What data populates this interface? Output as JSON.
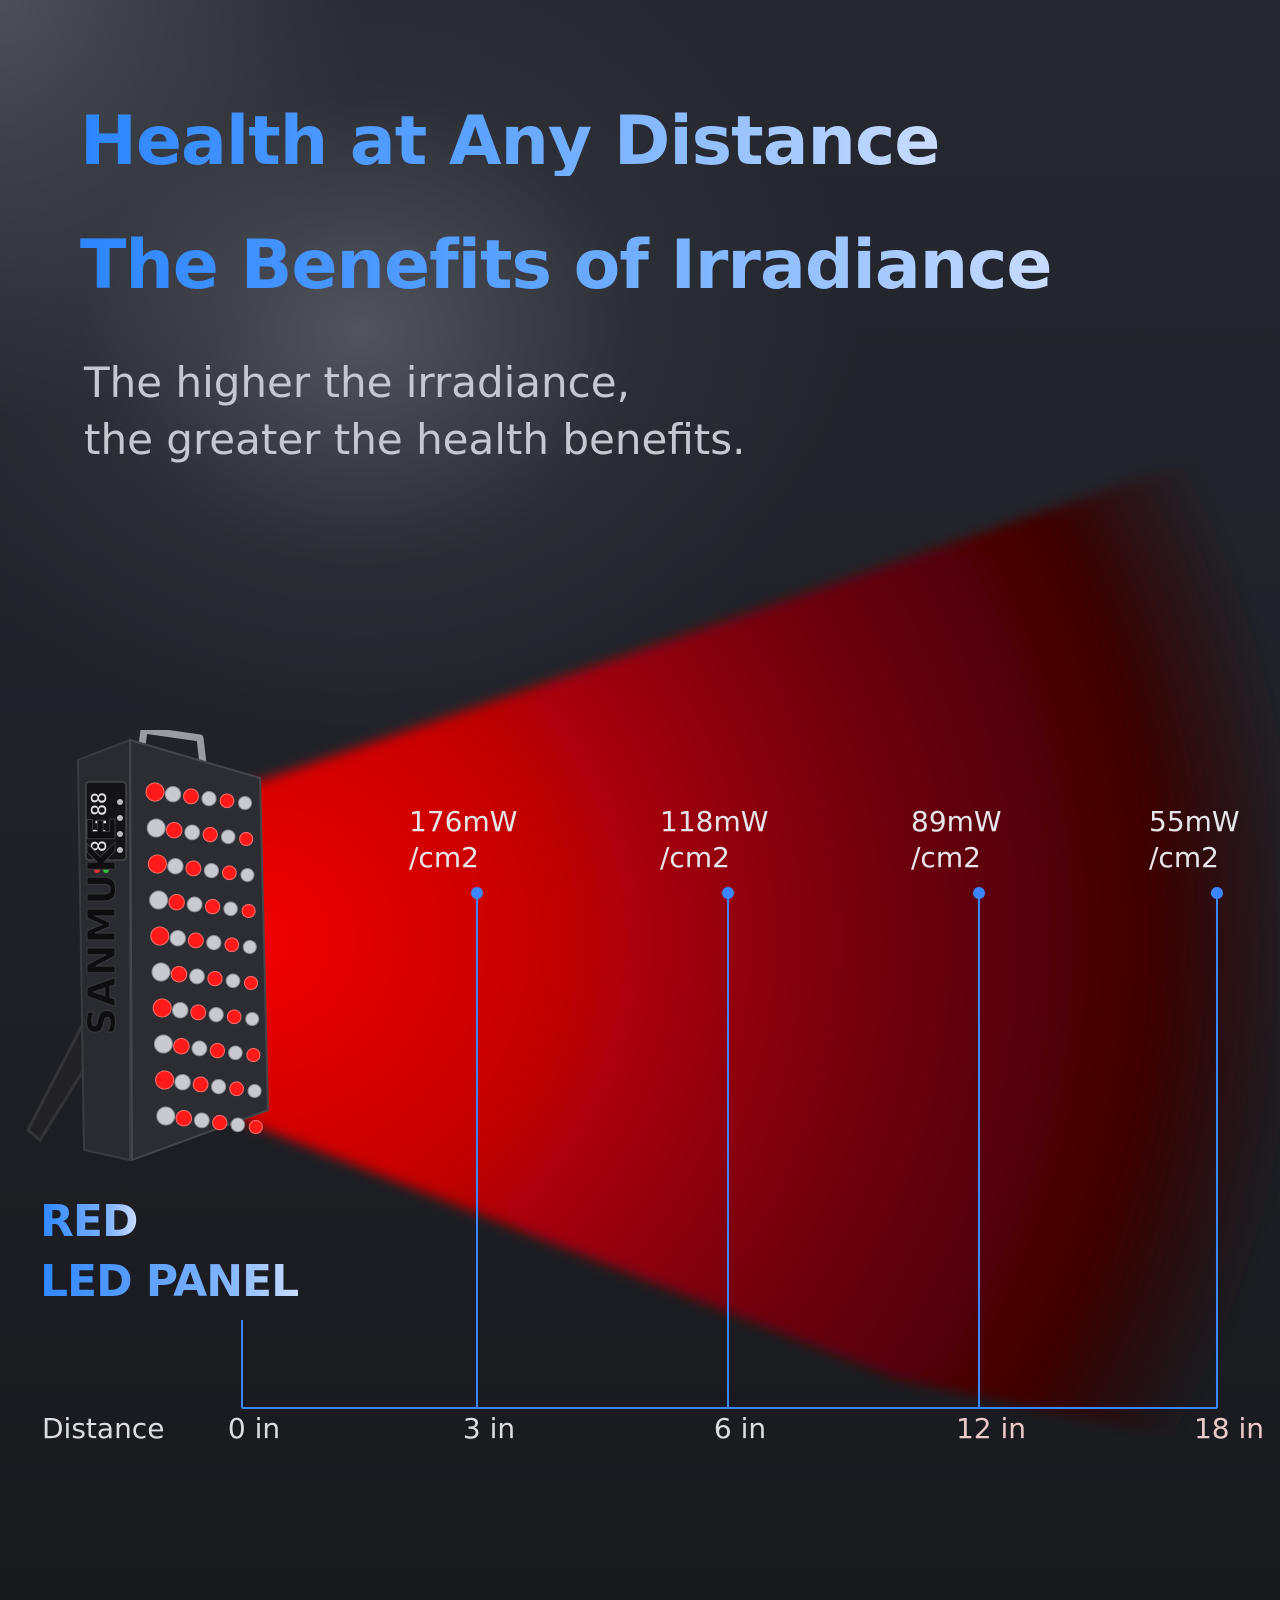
{
  "header": {
    "title_line1": "Health at Any Distance",
    "title_line2": "The Benefits of Irradiance",
    "subtitle_line1": "The higher the irradiance,",
    "subtitle_line2": "the greater the health benefits."
  },
  "product": {
    "brand": "SANMUKE",
    "display_readout": "88:88",
    "label_line1": "RED",
    "label_line2": "LED PANEL"
  },
  "colors": {
    "accent_blue": "#3b86ff",
    "beam_red": "#e00000"
  },
  "chart_data": {
    "type": "irradiance-distance",
    "xlabel": "Distance",
    "categories": [
      "0 in",
      "3 in",
      "6 in",
      "12 in",
      "18 in"
    ],
    "points": [
      {
        "distance": "3 in",
        "value_line1": "176mW",
        "value_line2": "/cm2",
        "value": 176
      },
      {
        "distance": "6 in",
        "value_line1": "118mW",
        "value_line2": "/cm2",
        "value": 118
      },
      {
        "distance": "12 in",
        "value_line1": "89mW",
        "value_line2": "/cm2",
        "value": 89
      },
      {
        "distance": "18 in",
        "value_line1": "55mW",
        "value_line2": "/cm2",
        "value": 55
      }
    ],
    "unit": "mW/cm2"
  }
}
